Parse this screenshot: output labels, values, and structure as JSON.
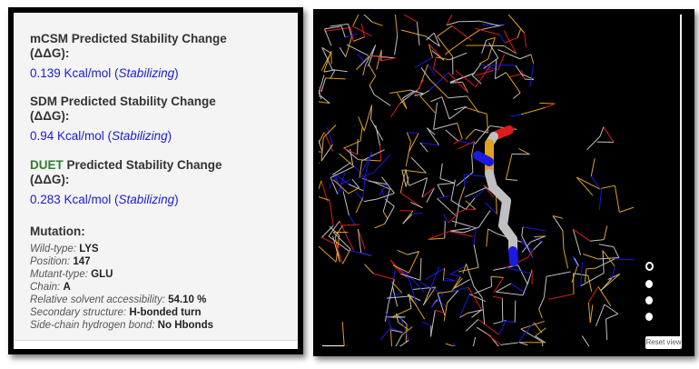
{
  "mcsm": {
    "title": "mCSM Predicted Stability Change",
    "ddg": "(ΔΔG):",
    "value": "0.139 Kcal/mol (",
    "effect": "Stabilizing",
    "close": ")"
  },
  "sdm": {
    "title": "SDM Predicted Stability Change",
    "ddg": "(ΔΔG):",
    "value": "0.94 Kcal/mol (",
    "effect": "Stabilizing",
    "close": ")"
  },
  "duet": {
    "name": "DUET",
    "title": " Predicted Stability Change",
    "ddg": "(ΔΔG):",
    "value": "0.283 Kcal/mol (",
    "effect": "Stabilizing",
    "close": ")"
  },
  "mutation": {
    "heading": "Mutation:",
    "rows": [
      {
        "label": "Wild-type:",
        "value": "LYS"
      },
      {
        "label": "Position:",
        "value": "147"
      },
      {
        "label": "Mutant-type:",
        "value": "GLU"
      },
      {
        "label": "Chain:",
        "value": "A"
      },
      {
        "label": "Relative solvent accessibility:",
        "value": "54.10 %"
      },
      {
        "label": "Secondary structure:",
        "value": "H-bonded turn"
      },
      {
        "label": "Side-chain hydrogen bond:",
        "value": "No Hbonds"
      }
    ]
  },
  "viewer": {
    "reset_label": "Reset view",
    "colors": {
      "carbon": "#c0c0c0",
      "nitrogen": "#1a1ae0",
      "oxygen": "#e01a1a",
      "sulfur": "#e0a020"
    }
  }
}
